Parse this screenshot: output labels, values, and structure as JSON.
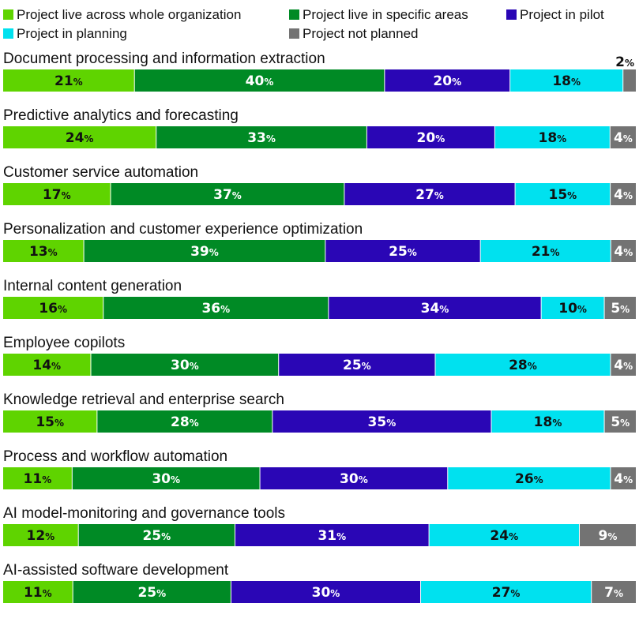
{
  "chart_data": {
    "type": "bar",
    "orientation": "horizontal",
    "stacked": true,
    "value_suffix": "%",
    "legend_position": "top",
    "grid": false,
    "xlim": [
      0,
      100
    ],
    "categories": [
      "Document processing and information extraction",
      "Predictive analytics and forecasting",
      "Customer service automation",
      "Personalization and customer experience optimization",
      "Internal content generation",
      "Employee copilots",
      "Knowledge retrieval and enterprise search",
      "Process and workflow automation",
      "AI model-monitoring and governance tools",
      "AI-assisted software development"
    ],
    "series": [
      {
        "name": "Project live across whole organization",
        "color": "#5fd400",
        "label_color": "#111111",
        "values": [
          21,
          24,
          17,
          13,
          16,
          14,
          15,
          11,
          12,
          11
        ]
      },
      {
        "name": "Project live in specific areas",
        "color": "#008a25",
        "label_color": "#ffffff",
        "values": [
          40,
          33,
          37,
          39,
          36,
          30,
          28,
          30,
          25,
          25
        ]
      },
      {
        "name": "Project in pilot",
        "color": "#2a06b5",
        "label_color": "#ffffff",
        "values": [
          20,
          20,
          27,
          25,
          34,
          25,
          35,
          30,
          31,
          30
        ]
      },
      {
        "name": "Project in planning",
        "color": "#00e1ef",
        "label_color": "#111111",
        "values": [
          18,
          18,
          15,
          21,
          10,
          28,
          18,
          26,
          24,
          27
        ]
      },
      {
        "name": "Project not planned",
        "color": "#737373",
        "label_color": "#ffffff",
        "values": [
          2,
          4,
          4,
          4,
          5,
          4,
          5,
          4,
          9,
          7
        ]
      }
    ]
  }
}
